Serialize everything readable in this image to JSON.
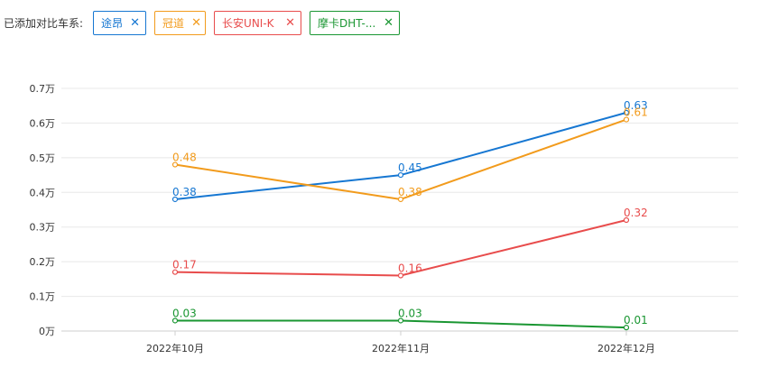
{
  "compare": {
    "label": "已添加对比车系:",
    "chips": [
      {
        "name": "途昂",
        "color": "#1677d2",
        "close": "✕"
      },
      {
        "name": "冠道",
        "color": "#f29b1c",
        "close": "✕"
      },
      {
        "name": "长安UNI-K",
        "color": "#e84c4c",
        "close": "✕"
      },
      {
        "name": "摩卡DHT-...",
        "color": "#1a9632",
        "close": "✕"
      }
    ]
  },
  "chart_data": {
    "type": "line",
    "categories": [
      "2022年10月",
      "2022年11月",
      "2022年12月"
    ],
    "ylim": [
      0,
      0.7
    ],
    "yticks": [
      "0万",
      "0.1万",
      "0.2万",
      "0.3万",
      "0.4万",
      "0.5万",
      "0.6万",
      "0.7万"
    ],
    "grid": true,
    "series": [
      {
        "name": "途昂",
        "color": "#1677d2",
        "values": [
          0.38,
          0.45,
          0.63
        ],
        "labels": [
          "0.38",
          "0.45",
          "0.63"
        ]
      },
      {
        "name": "冠道",
        "color": "#f29b1c",
        "values": [
          0.48,
          0.38,
          0.61
        ],
        "labels": [
          "0.48",
          "0.38",
          "0.61"
        ]
      },
      {
        "name": "长安UNI-K",
        "color": "#e84c4c",
        "values": [
          0.17,
          0.16,
          0.32
        ],
        "labels": [
          "0.17",
          "0.16",
          "0.32"
        ]
      },
      {
        "name": "摩卡DHT-...",
        "color": "#1a9632",
        "values": [
          0.03,
          0.03,
          0.01
        ],
        "labels": [
          "0.03",
          "0.03",
          "0.01"
        ]
      }
    ]
  }
}
